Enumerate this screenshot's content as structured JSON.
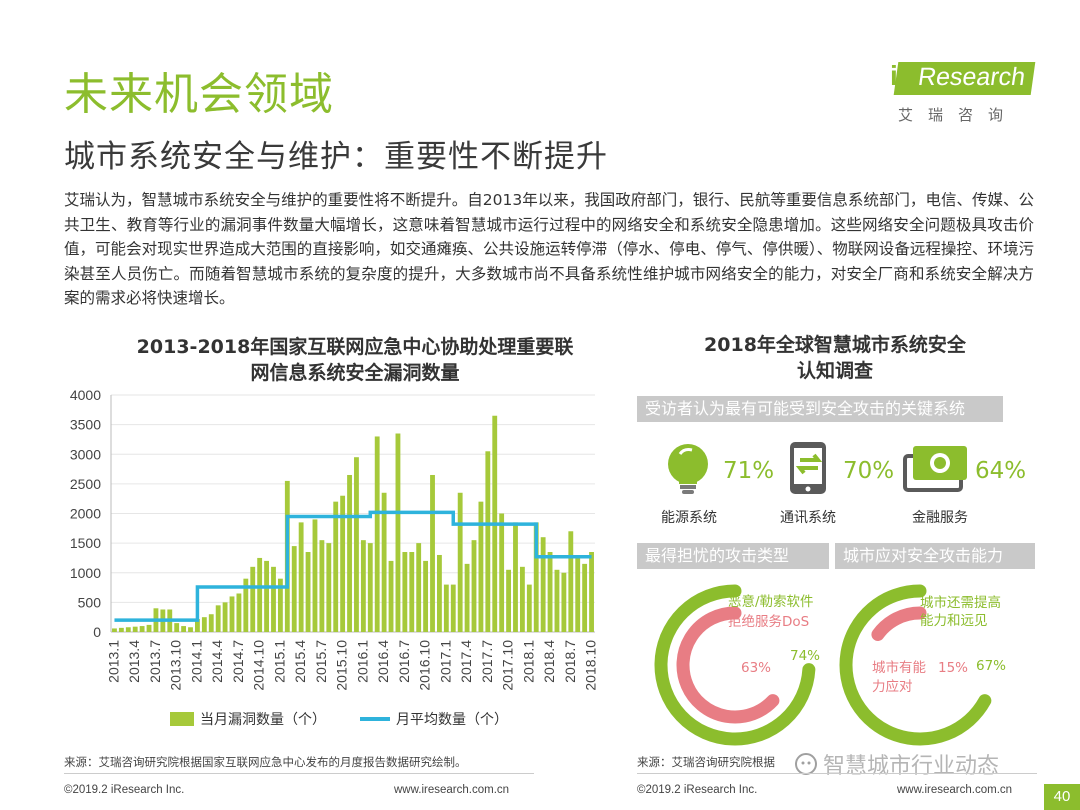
{
  "header": {
    "title": "未来机会领域",
    "subtitle": "城市系统安全与维护：重要性不断提升",
    "logo_word": "Research",
    "logo_i": "i",
    "logo_cn": "艾瑞咨询",
    "brand_color": "#8cbd2d"
  },
  "intro": "艾瑞认为，智慧城市系统安全与维护的重要性将不断提升。自2013年以来，我国政府部门，银行、民航等重要信息系统部门，电信、传媒、公共卫生、教育等行业的漏洞事件数量大幅增长，这意味着智慧城市运行过程中的网络安全和系统安全隐患增加。这些网络安全问题极具攻击价值，可能会对现实世界造成大范围的直接影响，如交通瘫痪、公共设施运转停滞（停水、停电、停气、停供暖）、物联网设备远程操控、环境污染甚至人员伤亡。而随着智慧城市系统的复杂度的提升，大多数城市尚不具备系统性维护城市网络安全的能力，对安全厂商和系统安全解决方案的需求必将快速增长。",
  "left_chart": {
    "title_line1": "2013-2018年国家互联网应急中心协助处理重要联",
    "title_line2": "网信息系统安全漏洞数量",
    "legend_bar": "当月漏洞数量（个）",
    "legend_line": "月平均数量（个）"
  },
  "chart_data": [
    {
      "type": "bar",
      "ylim": [
        0,
        4000
      ],
      "yticks": [
        0,
        500,
        1000,
        1500,
        2000,
        2500,
        3000,
        3500,
        4000
      ],
      "tick_labels": [
        "2013.1",
        "2013.4",
        "2013.7",
        "2013.10",
        "2014.1",
        "2014.4",
        "2014.7",
        "2014.10",
        "2015.1",
        "2015.4",
        "2015.7",
        "2015.10",
        "2016.1",
        "2016.4",
        "2016.7",
        "2016.10",
        "2017.1",
        "2017.4",
        "2017.7",
        "2017.10",
        "2018.1",
        "2018.4",
        "2018.7",
        "2018.10"
      ],
      "series": [
        {
          "name": "当月漏洞数量（个）",
          "kind": "bar",
          "color": "#a6c93a",
          "values": [
            60,
            70,
            80,
            90,
            100,
            120,
            400,
            380,
            380,
            150,
            100,
            80,
            220,
            250,
            300,
            450,
            500,
            600,
            650,
            900,
            1100,
            1250,
            1200,
            1100,
            900,
            2550,
            1450,
            1850,
            1350,
            1900,
            1550,
            1500,
            2200,
            2300,
            2650,
            2950,
            1550,
            1500,
            3300,
            2350,
            1200,
            3350,
            1350,
            1350,
            1500,
            1200,
            2650,
            1300,
            800,
            800,
            2350,
            1150,
            1550,
            2200,
            3050,
            3650,
            2000,
            1050,
            1850,
            1100,
            800,
            1850,
            1600,
            1350,
            1050,
            1000,
            1700,
            1250,
            1150,
            1350
          ],
          "avg_series": {
            "name": "月平均数量（个）",
            "kind": "line",
            "color": "#2eb3dc",
            "values": [
              200,
              200,
              200,
              200,
              200,
              200,
              200,
              200,
              200,
              200,
              200,
              200,
              760,
              760,
              760,
              760,
              760,
              760,
              760,
              760,
              760,
              760,
              760,
              760,
              760,
              1950,
              1950,
              1950,
              1950,
              1950,
              1950,
              1950,
              1950,
              1950,
              1950,
              1950,
              1950,
              2020,
              2020,
              2020,
              2020,
              2020,
              2020,
              2020,
              2020,
              2020,
              2020,
              2020,
              2020,
              1820,
              1820,
              1820,
              1820,
              1820,
              1820,
              1820,
              1820,
              1820,
              1820,
              1820,
              1820,
              1270,
              1270,
              1270,
              1270,
              1270,
              1270,
              1270,
              1270,
              1270
            ]
          }
        }
      ]
    },
    {
      "type": "icon-stat",
      "title": "受访者认为最有可能受到安全攻击的关键系统",
      "categories": [
        "能源系统",
        "通讯系统",
        "金融服务"
      ],
      "values": [
        71,
        70,
        64
      ],
      "value_labels": [
        "71%",
        "70%",
        "64%"
      ],
      "icons": [
        "lightbulb-icon",
        "mobile-sync-icon",
        "banknote-icon"
      ]
    },
    {
      "type": "pie",
      "title": "最得担忧的攻击类型",
      "series": [
        {
          "name": "恶意/勒索软件",
          "value": 74,
          "label": "74%",
          "color": "#8cbd2d"
        },
        {
          "name": "拒绝服务DoS",
          "value": 63,
          "label": "63%",
          "color": "#e87d84"
        }
      ]
    },
    {
      "type": "pie",
      "title": "城市应对安全攻击能力",
      "series": [
        {
          "name": "城市还需提高能力和远见",
          "value": 67,
          "label": "67%",
          "color": "#8cbd2d"
        },
        {
          "name": "城市有能力应对",
          "value": 15,
          "label": "15%",
          "color": "#e87d84"
        }
      ]
    }
  ],
  "right_panel": {
    "title_line1": "2018年全球智慧城市系统安全",
    "title_line2": "认知调查",
    "header_systems": "受访者认为最有可能受到安全攻击的关键系统",
    "header_attack": "最得担忧的攻击类型",
    "header_ability": "城市应对安全攻击能力",
    "donut1_green_label": "恶意/勒索软件",
    "donut1_red_label": "拒绝服务DoS",
    "donut2_green_line1": "城市还需提高",
    "donut2_green_line2": "能力和远见",
    "donut2_red_line1": "城市有能",
    "donut2_red_line2": "力应对"
  },
  "footer": {
    "source_left": "来源：艾瑞咨询研究院根据国家互联网应急中心发布的月度报告数据研究绘制。",
    "source_right": "来源：艾瑞咨询研究院根据",
    "copyright_left": "©2019.2 iResearch Inc.",
    "url_left": "www.iresearch.com.cn",
    "copyright_right": "©2019.2 iResearch Inc.",
    "url_right": "www.iresearch.com.cn",
    "page": "40",
    "watermark": "智慧城市行业动态"
  }
}
